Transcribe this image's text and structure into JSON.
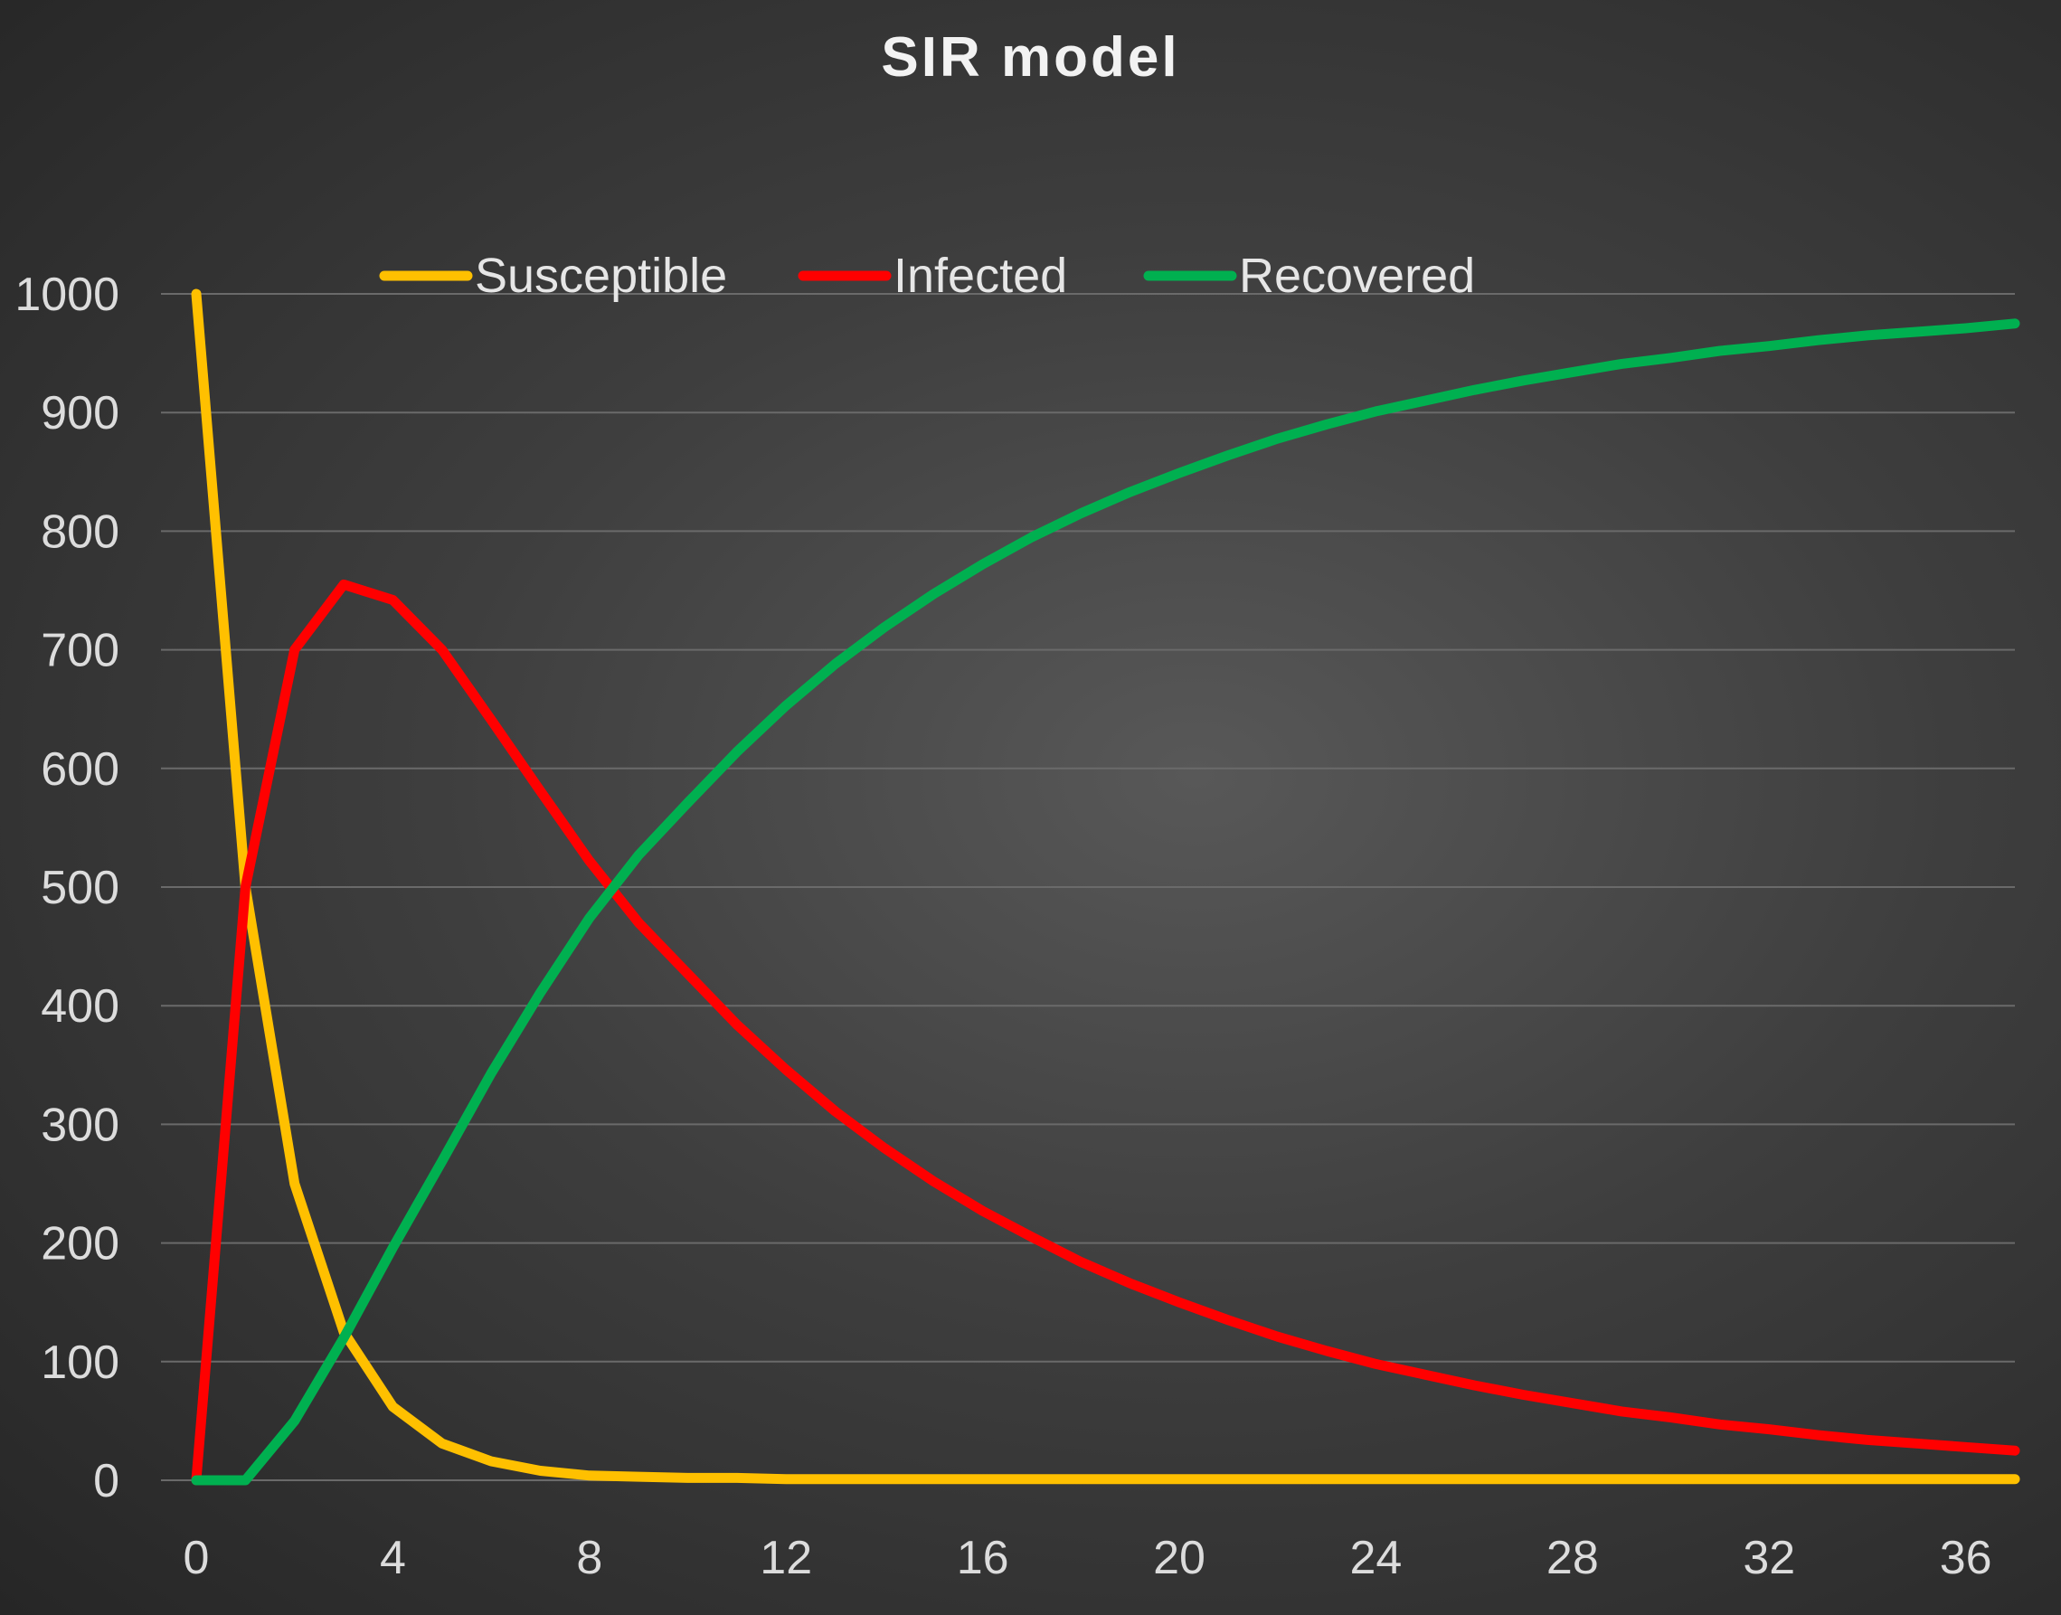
{
  "chart_data": {
    "type": "line",
    "title": "SIR model",
    "xlabel": "",
    "ylabel": "",
    "xlim": [
      0,
      37
    ],
    "ylim": [
      0,
      1000
    ],
    "yticks": [
      0,
      100,
      200,
      300,
      400,
      500,
      600,
      700,
      800,
      900,
      1000
    ],
    "xticks": [
      0,
      4,
      8,
      12,
      16,
      20,
      24,
      28,
      32,
      36
    ],
    "grid": true,
    "legend_position": "top",
    "x": [
      0,
      1,
      2,
      3,
      4,
      5,
      6,
      7,
      8,
      9,
      10,
      11,
      12,
      13,
      14,
      15,
      16,
      17,
      18,
      19,
      20,
      21,
      22,
      23,
      24,
      25,
      26,
      27,
      28,
      29,
      30,
      31,
      32,
      33,
      34,
      35,
      36,
      37
    ],
    "series": [
      {
        "name": "Susceptible",
        "color": "#FFC000",
        "values": [
          1000,
          500,
          250,
          125,
          62,
          31,
          16,
          8,
          4,
          3,
          2,
          2,
          1,
          1,
          1,
          1,
          1,
          1,
          1,
          1,
          1,
          1,
          1,
          1,
          1,
          1,
          1,
          1,
          1,
          1,
          1,
          1,
          1,
          1,
          1,
          1,
          1,
          1
        ]
      },
      {
        "name": "Infected",
        "color": "#FF0000",
        "values": [
          0,
          500,
          700,
          755,
          742,
          700,
          641,
          581,
          522,
          470,
          427,
          384,
          346,
          311,
          280,
          252,
          227,
          205,
          184,
          166,
          150,
          135,
          121,
          109,
          98,
          89,
          80,
          72,
          65,
          58,
          53,
          47,
          43,
          38,
          34,
          31,
          28,
          25
        ]
      },
      {
        "name": "Recovered",
        "color": "#00B050",
        "values": [
          0,
          0,
          50,
          120,
          196,
          269,
          343,
          411,
          474,
          527,
          571,
          614,
          653,
          688,
          719,
          747,
          772,
          795,
          815,
          833,
          849,
          864,
          878,
          890,
          901,
          910,
          919,
          927,
          934,
          941,
          946,
          952,
          956,
          961,
          965,
          968,
          971,
          975
        ]
      }
    ]
  }
}
